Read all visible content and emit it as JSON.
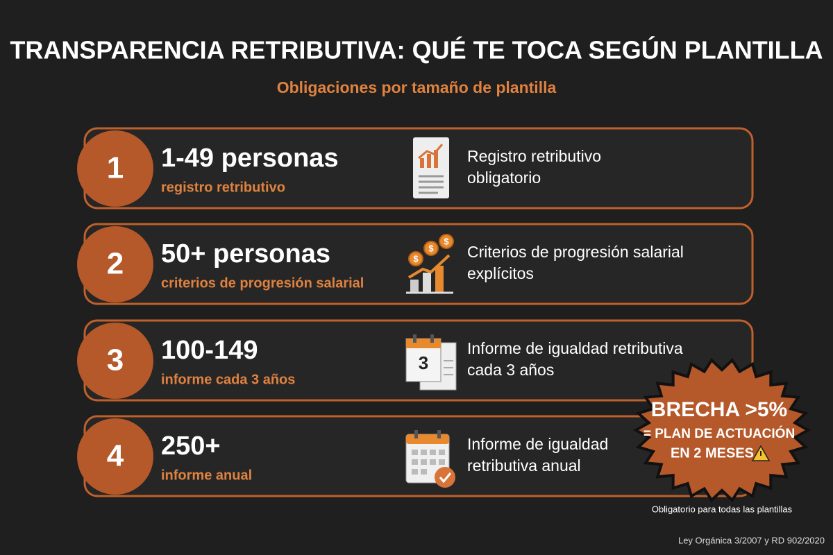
{
  "header": {
    "title": "TRANSPARENCIA RETRIBUTIVA: QUÉ TE TOCA SEGÚN PLANTILLA",
    "subtitle": "Obligaciones por tamaño de plantilla"
  },
  "rows": [
    {
      "number": "1",
      "heading": "1-49 personas",
      "subheading": "registro retributivo",
      "description": [
        "Registro retributivo",
        "obligatorio"
      ]
    },
    {
      "number": "2",
      "heading": "50+ personas",
      "subheading": "criterios de progresión salarial",
      "description": [
        "Criterios de progresión salarial",
        "explícitos"
      ]
    },
    {
      "number": "3",
      "heading": "100-149",
      "subheading": "informe cada 3 años",
      "description": [
        "Informe de igualdad retributiva",
        "cada 3 años"
      ]
    },
    {
      "number": "4",
      "heading": "250+",
      "subheading": "informe anual",
      "description": [
        "Informe de igualdad",
        "retributiva anual"
      ]
    }
  ],
  "badge": {
    "lines": [
      "BRECHA >5%",
      "= PLAN DE ACTUACIÓN",
      "EN 2 MESES"
    ],
    "note": "Obligatorio para todas las plantillas"
  },
  "icons": {
    "calendar_day": "3",
    "coin": "$"
  },
  "footer": "Ley Orgánica 3/2007 y RD 902/2020"
}
